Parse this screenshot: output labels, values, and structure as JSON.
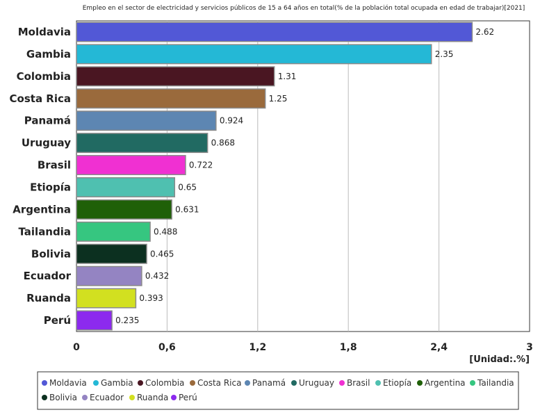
{
  "chart_data": {
    "type": "bar",
    "orientation": "horizontal",
    "title": "Empleo en el sector de electricidad y servicios públicos de 15 a 64 años en total(% de la población total ocupada en edad de trabajar)[2021]",
    "unit_label": "[Unidad:.%]",
    "xlim": [
      0,
      3
    ],
    "ticks": [
      0,
      0.6,
      1.2,
      1.8,
      2.4,
      3
    ],
    "tick_labels": [
      "0",
      "0,6",
      "1,2",
      "1,8",
      "2,4",
      "3"
    ],
    "grid": true,
    "legend_position": "bottom",
    "categories": [
      "Moldavia",
      "Gambia",
      "Colombia",
      "Costa Rica",
      "Panamá",
      "Uruguay",
      "Brasil",
      "Etiopía",
      "Argentina",
      "Tailandia",
      "Bolivia",
      "Ecuador",
      "Ruanda",
      "Perú"
    ],
    "values": [
      2.62,
      2.35,
      1.31,
      1.25,
      0.924,
      0.868,
      0.722,
      0.65,
      0.631,
      0.488,
      0.465,
      0.432,
      0.393,
      0.235
    ],
    "value_labels": [
      "2.62",
      "2.35",
      "1.31",
      "1.25",
      "0.924",
      "0.868",
      "0.722",
      "0.65",
      "0.631",
      "0.488",
      "0.465",
      "0.432",
      "0.393",
      "0.235"
    ],
    "colors": [
      "#5258d6",
      "#24b8d6",
      "#4a1622",
      "#9a6a3c",
      "#5d86b2",
      "#216a62",
      "#f030d2",
      "#4fc0b0",
      "#1f6008",
      "#36c680",
      "#0c3020",
      "#9484c2",
      "#d2e020",
      "#8c2aee"
    ]
  }
}
